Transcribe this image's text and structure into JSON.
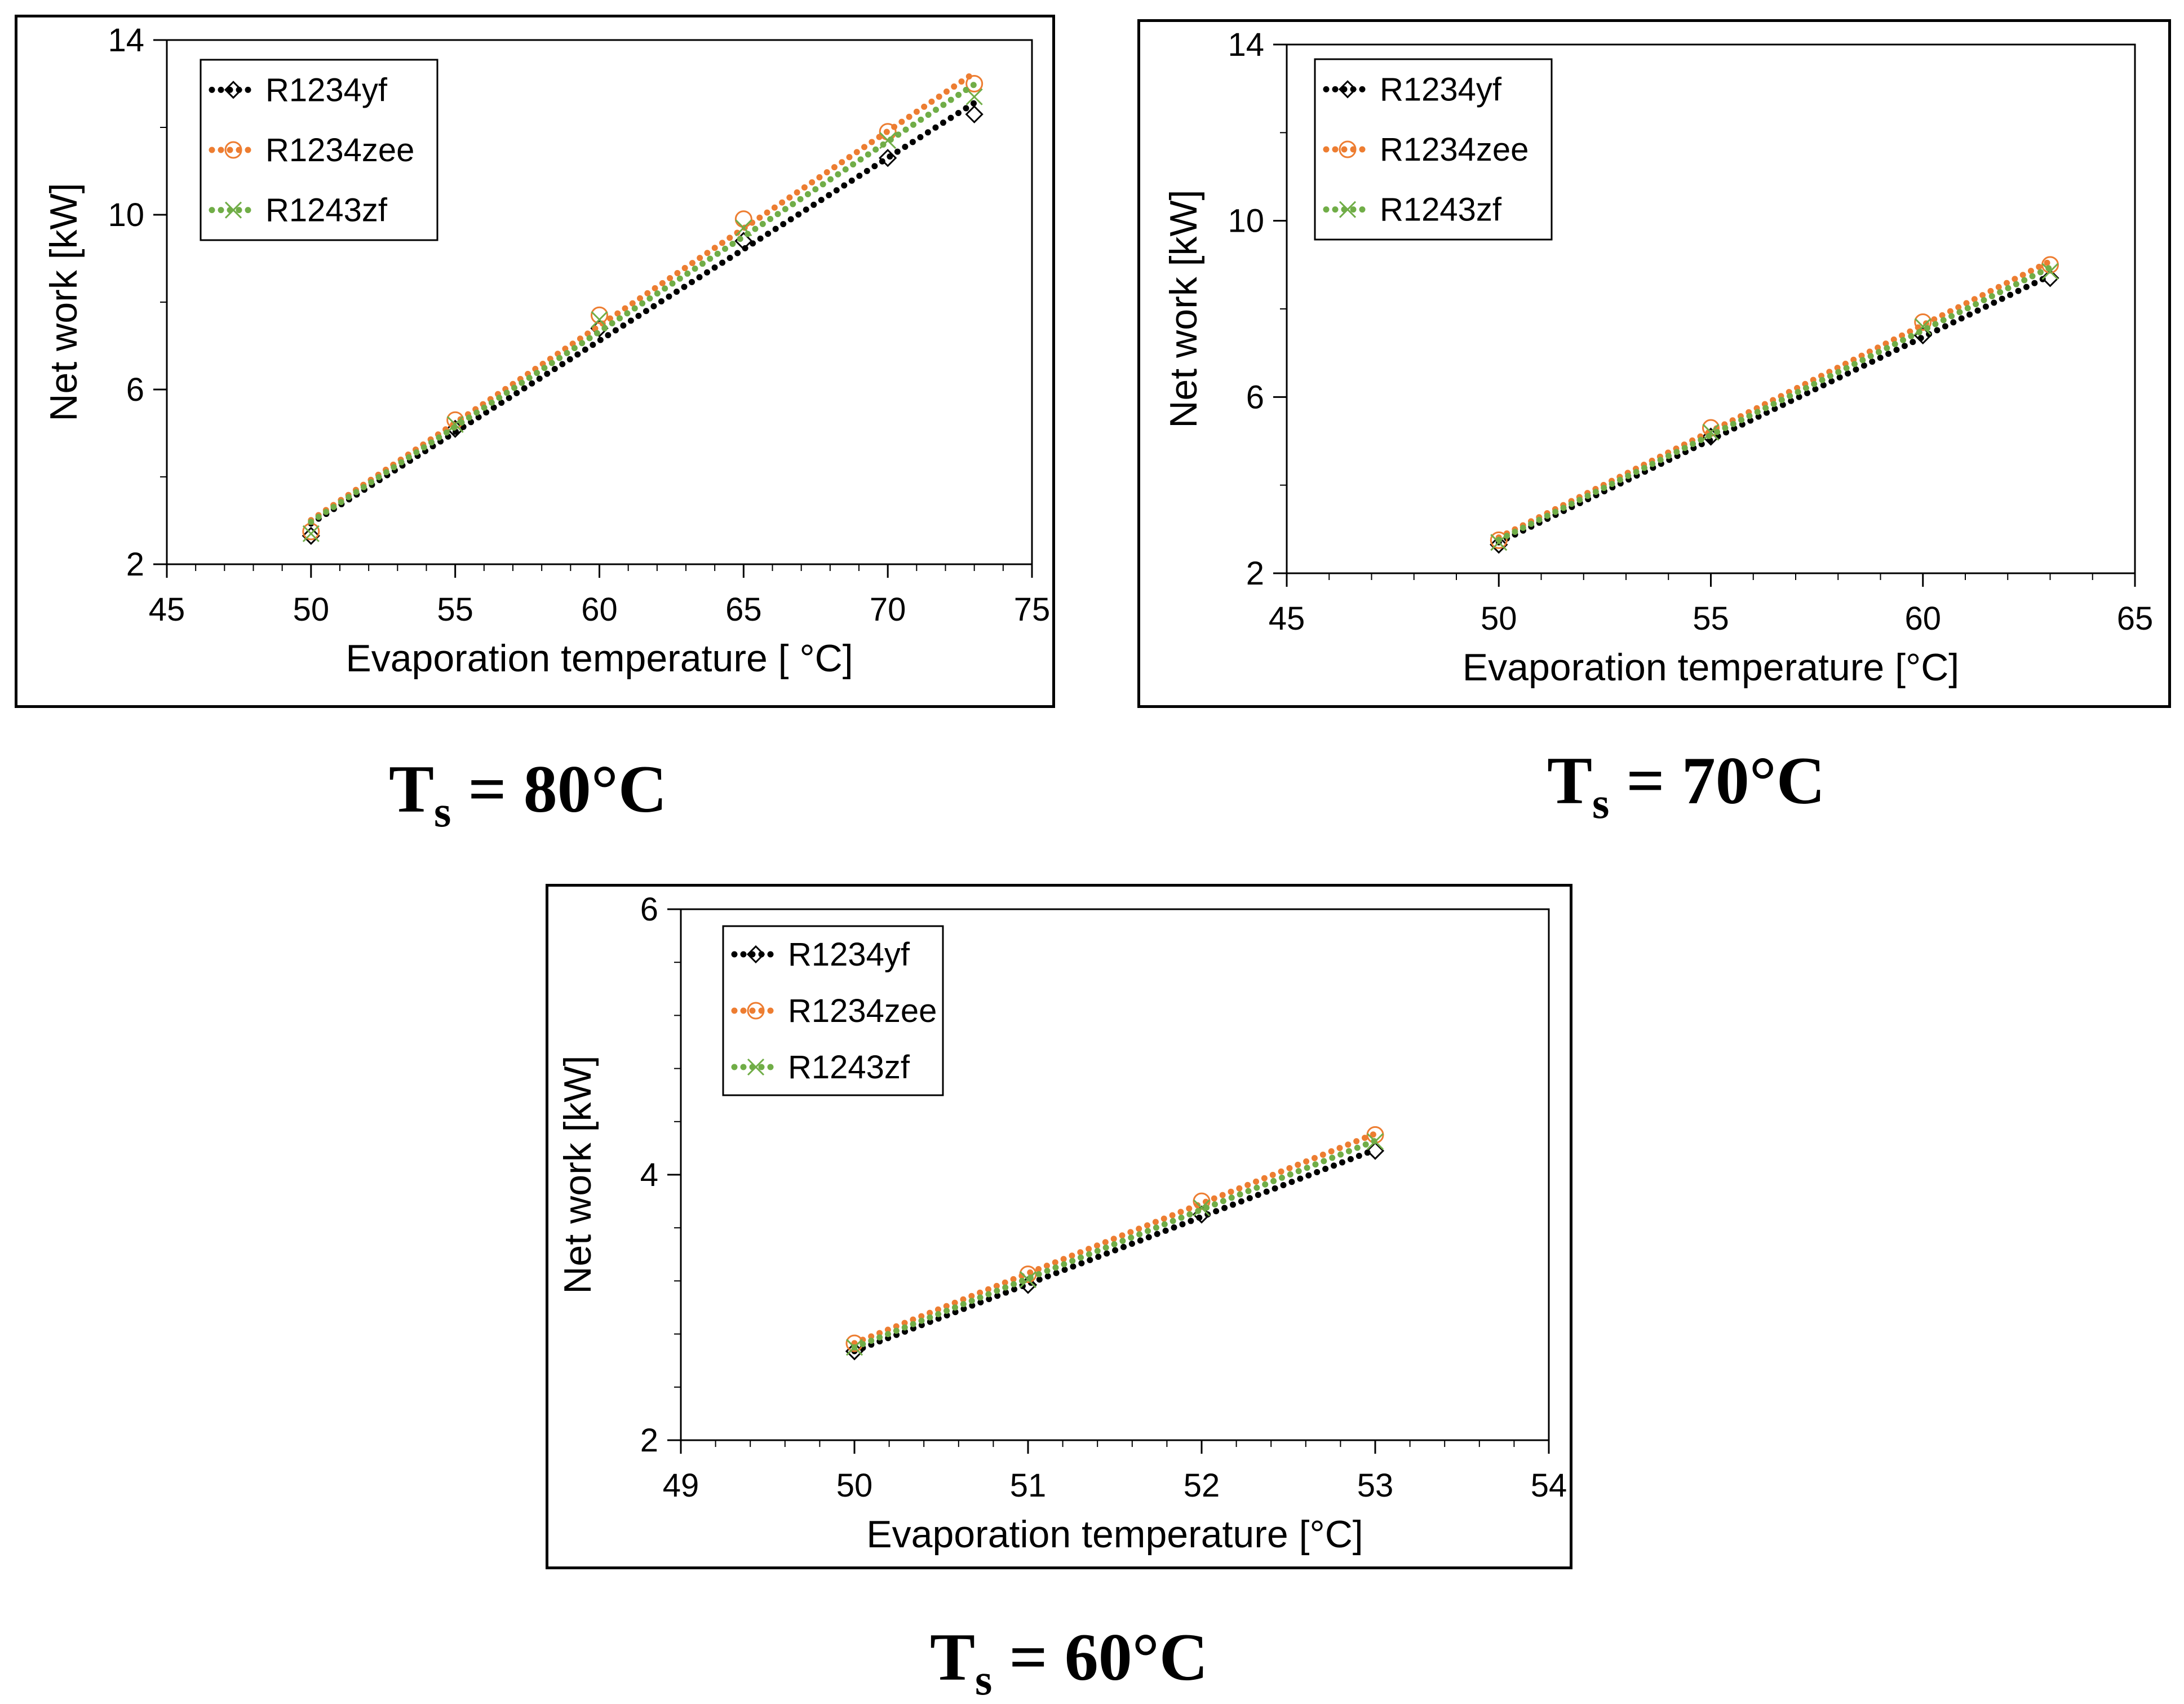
{
  "colors": {
    "R1234yf": "#000000",
    "R1234zee": "#ed7d31",
    "R1243zf": "#70ad47"
  },
  "chart_data": [
    {
      "type": "scatter",
      "caption": {
        "main": "T",
        "sub": "s",
        "rest": " = 80°C"
      },
      "xlabel": "Evaporation temperature [ °C]",
      "ylabel": "Net work [kW]",
      "xlim": [
        45,
        75
      ],
      "ylim": [
        2,
        14
      ],
      "xticks": [
        45,
        50,
        55,
        60,
        65,
        70,
        75
      ],
      "yticks": [
        2,
        6,
        10,
        14
      ],
      "x_minor_step": 1,
      "y_minor_step": 2,
      "legend": "top-left",
      "series": [
        {
          "name": "R1234yf",
          "marker": "diamond",
          "x": [
            50,
            55,
            60,
            65,
            70,
            73
          ],
          "y": [
            2.65,
            5.1,
            7.4,
            9.4,
            11.3,
            12.3
          ]
        },
        {
          "name": "R1234zee",
          "marker": "circle",
          "x": [
            50,
            55,
            60,
            65,
            70,
            73
          ],
          "y": [
            2.75,
            5.3,
            7.7,
            9.9,
            11.9,
            13.0
          ]
        },
        {
          "name": "R1243zf",
          "marker": "x",
          "x": [
            50,
            55,
            60,
            65,
            70,
            73
          ],
          "y": [
            2.7,
            5.2,
            7.6,
            9.7,
            11.7,
            12.7
          ]
        }
      ]
    },
    {
      "type": "scatter",
      "caption": {
        "main": "T",
        "sub": "s",
        "rest": " = 70°C"
      },
      "xlabel": "Evaporation temperature [°C]",
      "ylabel": "Net work [kW]",
      "xlim": [
        45,
        65
      ],
      "ylim": [
        2,
        14
      ],
      "xticks": [
        45,
        50,
        55,
        60,
        65
      ],
      "yticks": [
        2,
        6,
        10,
        14
      ],
      "x_minor_step": 1,
      "y_minor_step": 2,
      "legend": "top-left",
      "series": [
        {
          "name": "R1234yf",
          "marker": "diamond",
          "x": [
            50,
            55,
            60,
            63
          ],
          "y": [
            2.65,
            5.1,
            7.4,
            8.7
          ]
        },
        {
          "name": "R1234zee",
          "marker": "circle",
          "x": [
            50,
            55,
            60,
            63
          ],
          "y": [
            2.75,
            5.3,
            7.7,
            9.0
          ]
        },
        {
          "name": "R1243zf",
          "marker": "x",
          "x": [
            50,
            55,
            60,
            63
          ],
          "y": [
            2.7,
            5.2,
            7.6,
            8.85
          ]
        }
      ]
    },
    {
      "type": "scatter",
      "caption": {
        "main": "T",
        "sub": "s",
        "rest": " = 60°C"
      },
      "xlabel": "Evaporation temperature [°C]",
      "ylabel": "Net work [kW]",
      "xlim": [
        49,
        54
      ],
      "ylim": [
        2,
        6
      ],
      "xticks": [
        49,
        50,
        51,
        52,
        53,
        54
      ],
      "yticks": [
        2,
        4,
        6
      ],
      "x_minor_step": 0.2,
      "y_minor_step": 0.4,
      "legend": "top-left",
      "series": [
        {
          "name": "R1234yf",
          "marker": "diamond",
          "x": [
            50,
            51,
            52,
            53
          ],
          "y": [
            2.67,
            3.17,
            3.7,
            4.18
          ]
        },
        {
          "name": "R1234zee",
          "marker": "circle",
          "x": [
            50,
            51,
            52,
            53
          ],
          "y": [
            2.73,
            3.25,
            3.8,
            4.3
          ]
        },
        {
          "name": "R1243zf",
          "marker": "x",
          "x": [
            50,
            51,
            52,
            53
          ],
          "y": [
            2.7,
            3.21,
            3.75,
            4.25
          ]
        }
      ]
    }
  ]
}
